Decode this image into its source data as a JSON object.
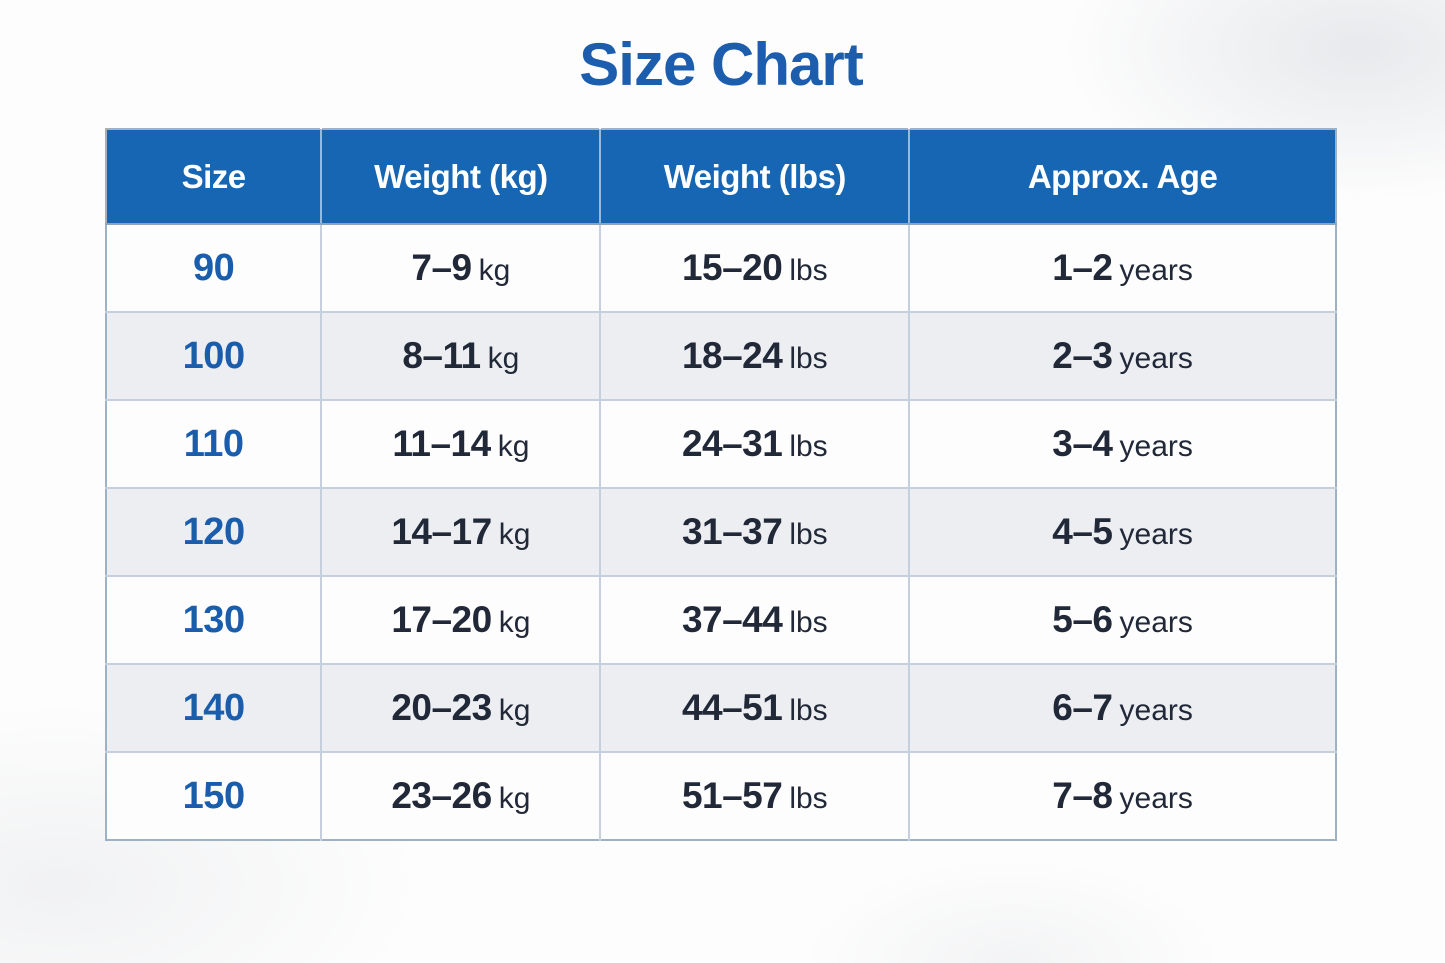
{
  "title": "Size Chart",
  "colors": {
    "header_bg": "#1766b4",
    "header_text": "#ffffff",
    "title_text": "#1d5dae",
    "size_text": "#1a5dad",
    "body_text": "#212837",
    "row_bg": "#fdfdfe",
    "row_alt_bg": "#eceef2",
    "border_outer": "#9fb1c5",
    "border_inner": "#c6cfdd"
  },
  "table": {
    "headers": [
      "Size",
      "Weight (kg)",
      "Weight (lbs)",
      "Approx. Age"
    ],
    "rows": [
      {
        "size": "90",
        "kg": "7–9",
        "kg_unit": "kg",
        "lbs": "15–20",
        "lbs_unit": "lbs",
        "age": "1–2",
        "age_unit": "years"
      },
      {
        "size": "100",
        "kg": "8–11",
        "kg_unit": "kg",
        "lbs": "18–24",
        "lbs_unit": "lbs",
        "age": "2–3",
        "age_unit": "years"
      },
      {
        "size": "110",
        "kg": "11–14",
        "kg_unit": "kg",
        "lbs": "24–31",
        "lbs_unit": "lbs",
        "age": "3–4",
        "age_unit": "years"
      },
      {
        "size": "120",
        "kg": "14–17",
        "kg_unit": "kg",
        "lbs": "31–37",
        "lbs_unit": "lbs",
        "age": "4–5",
        "age_unit": "years"
      },
      {
        "size": "130",
        "kg": "17–20",
        "kg_unit": "kg",
        "lbs": "37–44",
        "lbs_unit": "lbs",
        "age": "5–6",
        "age_unit": "years"
      },
      {
        "size": "140",
        "kg": "20–23",
        "kg_unit": "kg",
        "lbs": "44–51",
        "lbs_unit": "lbs",
        "age": "6–7",
        "age_unit": "years"
      },
      {
        "size": "150",
        "kg": "23–26",
        "kg_unit": "kg",
        "lbs": "51–57",
        "lbs_unit": "lbs",
        "age": "7–8",
        "age_unit": "years"
      }
    ]
  },
  "chart_data": {
    "type": "table",
    "title": "Size Chart",
    "columns": [
      "Size",
      "Weight (kg)",
      "Weight (lbs)",
      "Approx. Age"
    ],
    "rows": [
      [
        "90",
        "7–9 kg",
        "15–20 lbs",
        "1–2 years"
      ],
      [
        "100",
        "8–11 kg",
        "18–24 lbs",
        "2–3 years"
      ],
      [
        "110",
        "11–14 kg",
        "24–31 lbs",
        "3–4 years"
      ],
      [
        "120",
        "14–17 kg",
        "31–37 lbs",
        "4–5 years"
      ],
      [
        "130",
        "17–20 kg",
        "37–44 lbs",
        "5–6 years"
      ],
      [
        "140",
        "20–23 kg",
        "44–51 lbs",
        "6–7 years"
      ],
      [
        "150",
        "23–26 kg",
        "51–57 lbs",
        "7–8 years"
      ]
    ]
  }
}
